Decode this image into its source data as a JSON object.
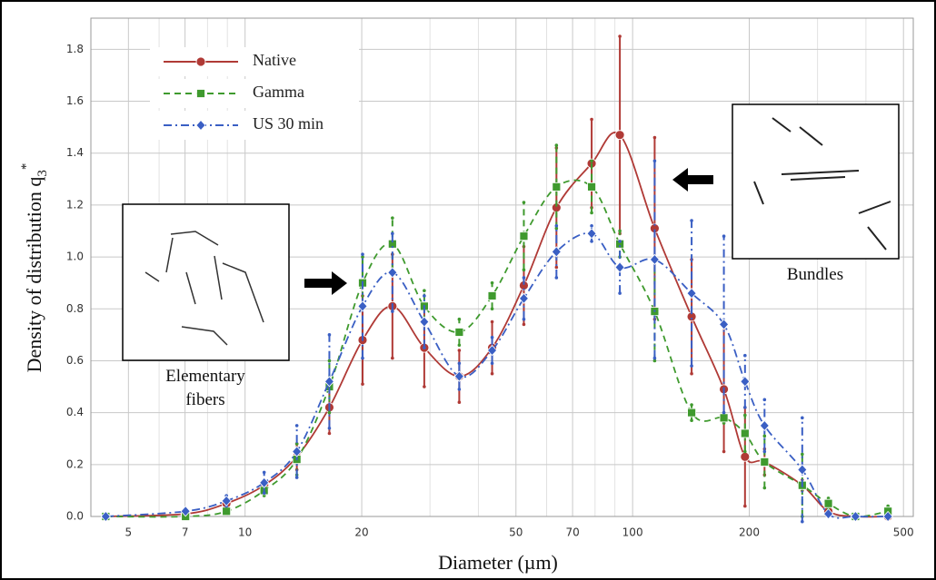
{
  "chart_data": {
    "type": "line",
    "xlabel": "Diameter (µm)",
    "ylabel": "Density of distribution q",
    "ylabel_sub": "3",
    "ylabel_sup": "*",
    "xscale": "log",
    "xlim": [
      4,
      530
    ],
    "ylim": [
      0,
      1.92
    ],
    "xticks": [
      5,
      7,
      10,
      20,
      50,
      70,
      100,
      200,
      500
    ],
    "minor_xticks": [
      4,
      6,
      8,
      9,
      30,
      40,
      60,
      80,
      90,
      300,
      400
    ],
    "yticks": [
      {
        "value": 0,
        "label": "0.0"
      },
      0.2,
      0.4,
      0.6,
      0.8,
      {
        "value": 1,
        "label": "1.0"
      },
      1.2,
      1.4,
      1.6,
      1.8
    ],
    "grid": true,
    "legend": "upper left",
    "x": [
      4.37,
      7.02,
      8.95,
      11.2,
      13.6,
      16.5,
      20.1,
      24.0,
      29.0,
      35.7,
      43.4,
      52.4,
      63.6,
      78.4,
      92.7,
      114,
      142,
      172,
      195,
      219,
      274,
      320,
      376,
      456
    ],
    "series": [
      {
        "name": "Native",
        "color": "#b03a36",
        "marker": "circle",
        "dash": "solid",
        "values": [
          0,
          0.01,
          0.05,
          0.12,
          0.23,
          0.42,
          0.68,
          0.81,
          0.65,
          0.54,
          0.65,
          0.89,
          1.19,
          1.36,
          1.47,
          1.11,
          0.77,
          0.49,
          0.23,
          0.21,
          0.12,
          0.02,
          0,
          0
        ],
        "errors": [
          0,
          0,
          0.01,
          0.02,
          0.05,
          0.1,
          0.17,
          0.2,
          0.15,
          0.1,
          0.1,
          0.15,
          0.23,
          0.17,
          0.38,
          0.35,
          0.22,
          0.24,
          0.19,
          0.05,
          0.02,
          0.01,
          0,
          0
        ]
      },
      {
        "name": "Gamma",
        "color": "#3f9a2e",
        "marker": "square",
        "dash": "dashed",
        "values": [
          0,
          0,
          0.02,
          0.1,
          0.22,
          0.5,
          0.9,
          1.05,
          0.81,
          0.71,
          0.85,
          1.08,
          1.27,
          1.27,
          1.05,
          0.79,
          0.4,
          0.38,
          0.32,
          0.21,
          0.12,
          0.05,
          0,
          0.02
        ],
        "errors": [
          0,
          0,
          0.01,
          0.02,
          0.06,
          0.1,
          0.1,
          0.1,
          0.06,
          0.05,
          0.05,
          0.13,
          0.16,
          0.1,
          0.05,
          0.19,
          0.03,
          0.02,
          0.07,
          0.1,
          0.12,
          0.02,
          0,
          0.02
        ]
      },
      {
        "name": "US 30 min",
        "color": "#3a5fc4",
        "marker": "diamond",
        "dash": "dashdot",
        "values": [
          0,
          0.02,
          0.06,
          0.13,
          0.25,
          0.52,
          0.81,
          0.94,
          0.75,
          0.54,
          0.64,
          0.84,
          1.02,
          1.09,
          0.96,
          0.99,
          0.86,
          0.74,
          0.52,
          0.35,
          0.18,
          0.01,
          0,
          0
        ],
        "errors": [
          0,
          0.01,
          0.02,
          0.04,
          0.1,
          0.18,
          0.2,
          0.15,
          0.1,
          0.05,
          0.05,
          0.08,
          0.1,
          0.03,
          0.1,
          0.38,
          0.28,
          0.34,
          0.1,
          0.1,
          0.2,
          0.01,
          0,
          0
        ]
      }
    ],
    "annotations": {
      "left": [
        "Elementary",
        "fibers"
      ],
      "right": "Bundles"
    }
  }
}
